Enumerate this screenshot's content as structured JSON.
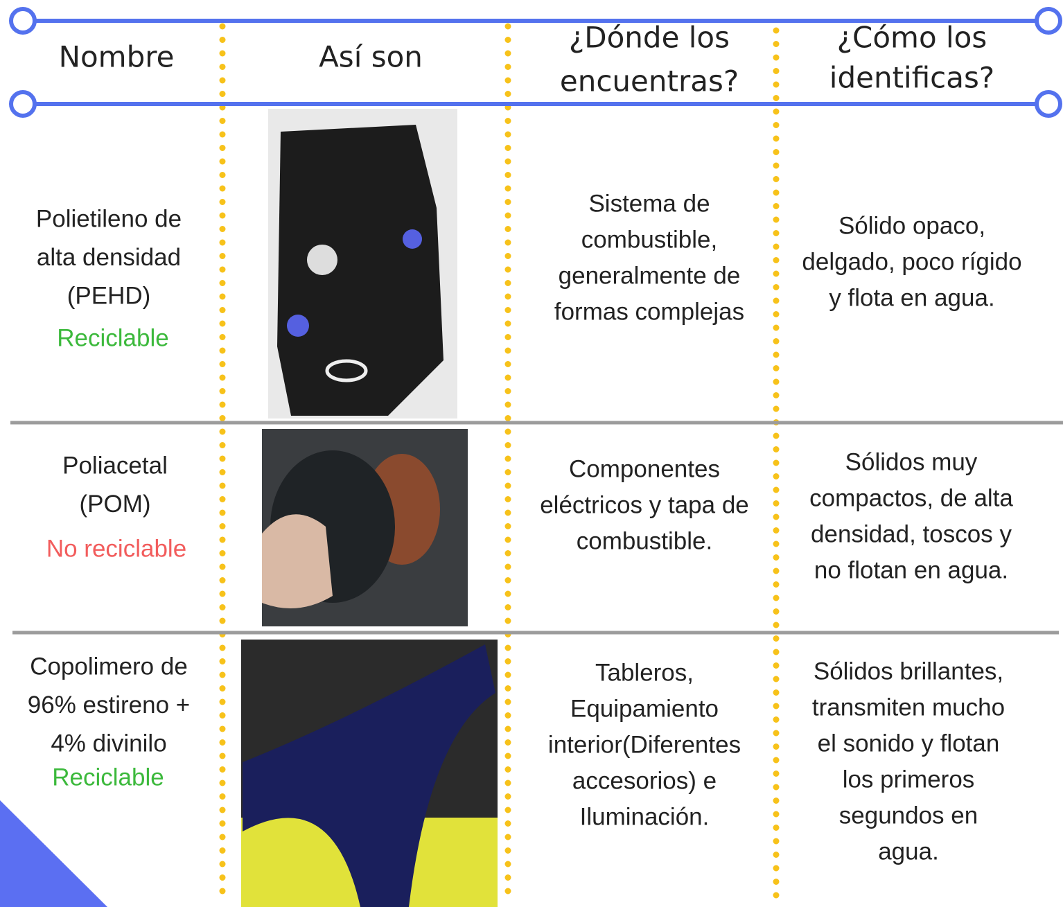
{
  "header": {
    "columns": [
      [
        "Nombre"
      ],
      [
        "Así son"
      ],
      [
        "¿Dónde los",
        "encuentras?"
      ],
      [
        "¿Cómo los",
        "identificas?"
      ]
    ]
  },
  "rows": [
    {
      "name": [
        "Polietileno de",
        "alta densidad",
        "(PEHD)"
      ],
      "status": "Reciclable",
      "location": [
        "Sistema de",
        "combustible,",
        "generalmente de",
        "formas complejas"
      ],
      "identification": [
        "Sólido opaco,",
        "delgado, poco rígido",
        "y flota en agua."
      ]
    },
    {
      "name": [
        "Poliacetal",
        "(POM)"
      ],
      "status": "No reciclable",
      "location": [
        "Componentes",
        "eléctricos y tapa de",
        "combustible."
      ],
      "identification": [
        "Sólidos muy",
        "compactos, de alta",
        "densidad, toscos y",
        "no flotan en agua."
      ]
    },
    {
      "name": [
        "Copolimero de",
        "96% estireno +",
        "4% divinilo"
      ],
      "status": "Reciclable",
      "location": [
        "Tableros,",
        "Equipamiento",
        "interior(Diferentes",
        "accesorios) e",
        "Iluminación."
      ],
      "identification": [
        "Sólidos brillantes,",
        "transmiten mucho",
        "el sonido y flotan",
        "los primeros",
        "segundos en",
        "agua."
      ]
    }
  ]
}
